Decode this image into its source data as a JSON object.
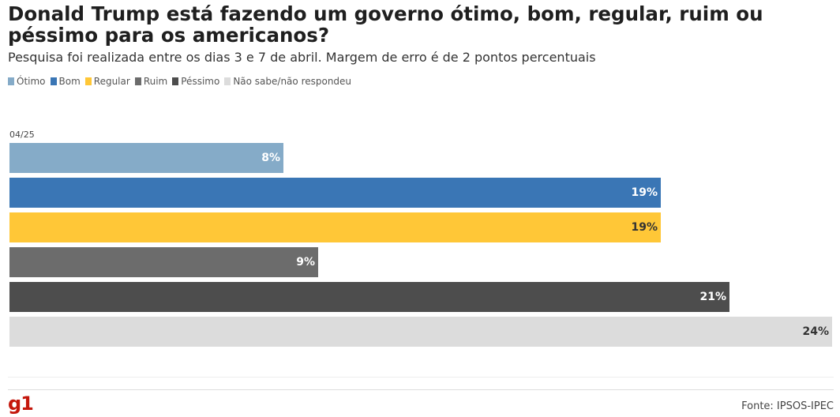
{
  "title": "Donald Trump está fazendo um governo ótimo, bom, regular, ruim ou péssimo para os americanos?",
  "subtitle": "Pesquisa foi realizada entre os dias 3 e 7 de abril. Margem de erro é de 2 pontos percentuais",
  "source": "Fonte: IPSOS-IPEC",
  "logo": "g1",
  "chart_data": {
    "type": "bar",
    "orientation": "horizontal",
    "title": "Donald Trump está fazendo um governo ótimo, bom, regular, ruim ou péssimo para os americanos?",
    "xlabel": "",
    "ylabel": "",
    "categories": [
      "04/25"
    ],
    "xlim": [
      0,
      24
    ],
    "grid": false,
    "legend_position": "top-left",
    "series": [
      {
        "name": "Ótimo",
        "values": [
          8
        ],
        "label": "8%",
        "color": "#85abc8",
        "text_color": "#ffffff"
      },
      {
        "name": "Bom",
        "values": [
          19
        ],
        "label": "19%",
        "color": "#3a76b5",
        "text_color": "#ffffff"
      },
      {
        "name": "Regular",
        "values": [
          19
        ],
        "label": "19%",
        "color": "#ffc737",
        "text_color": "#333333"
      },
      {
        "name": "Ruim",
        "values": [
          9
        ],
        "label": "9%",
        "color": "#6c6c6c",
        "text_color": "#ffffff"
      },
      {
        "name": "Péssimo",
        "values": [
          21
        ],
        "label": "21%",
        "color": "#4d4d4d",
        "text_color": "#ffffff"
      },
      {
        "name": "Não sabe/não respondeu",
        "values": [
          24
        ],
        "label": "24%",
        "color": "#dcdcdc",
        "text_color": "#333333"
      }
    ]
  }
}
